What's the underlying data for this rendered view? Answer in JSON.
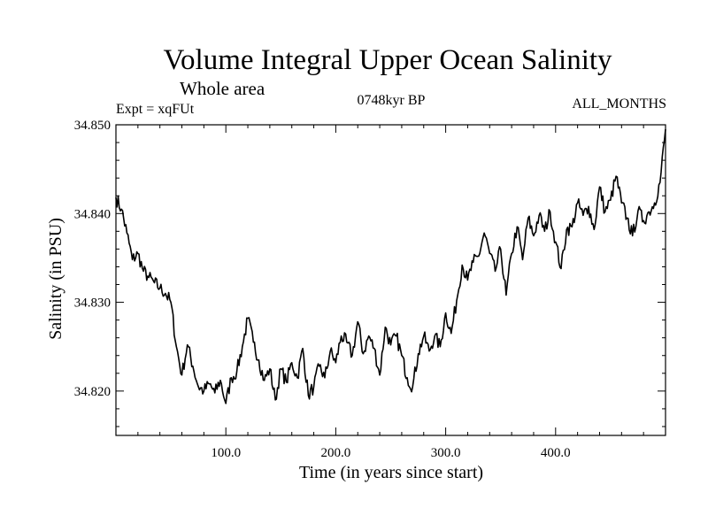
{
  "chart_data": {
    "type": "line",
    "title": "Volume Integral Upper Ocean Salinity",
    "subtitle": "Whole area",
    "annotations": {
      "experiment": "Expt = xqFUt",
      "period": "0748kyr BP",
      "months": "ALL_MONTHS"
    },
    "xlabel": "Time (in years since start)",
    "ylabel": "Salinity (in PSU)",
    "xlim": [
      0,
      500
    ],
    "ylim": [
      34.815,
      34.85
    ],
    "x_ticks": [
      100,
      200,
      300,
      400
    ],
    "x_tick_labels": [
      "100.0",
      "200.0",
      "300.0",
      "400.0"
    ],
    "y_ticks": [
      34.82,
      34.83,
      34.84,
      34.85
    ],
    "y_tick_labels": [
      "34.820",
      "34.830",
      "34.840",
      "34.850"
    ],
    "grid": false,
    "series": [
      {
        "name": "salinity",
        "x": [
          0,
          5,
          10,
          15,
          20,
          25,
          30,
          35,
          40,
          45,
          50,
          55,
          60,
          65,
          70,
          75,
          80,
          85,
          90,
          95,
          100,
          105,
          110,
          115,
          120,
          125,
          130,
          135,
          140,
          145,
          150,
          155,
          160,
          165,
          170,
          175,
          180,
          185,
          190,
          195,
          200,
          205,
          210,
          215,
          220,
          225,
          230,
          235,
          240,
          245,
          250,
          255,
          260,
          265,
          270,
          275,
          280,
          285,
          290,
          295,
          300,
          305,
          310,
          315,
          320,
          325,
          330,
          335,
          340,
          345,
          350,
          355,
          360,
          365,
          370,
          375,
          380,
          385,
          390,
          395,
          400,
          405,
          410,
          415,
          420,
          425,
          430,
          435,
          440,
          445,
          450,
          455,
          460,
          465,
          470,
          475,
          480,
          485,
          490,
          495,
          500
        ],
        "values": [
          34.8418,
          34.8405,
          34.8378,
          34.8348,
          34.8355,
          34.8335,
          34.8328,
          34.8322,
          34.8316,
          34.831,
          34.83,
          34.825,
          34.8218,
          34.8252,
          34.8228,
          34.8205,
          34.82,
          34.8208,
          34.8198,
          34.8212,
          34.8186,
          34.8215,
          34.8222,
          34.825,
          34.8282,
          34.8255,
          34.8235,
          34.8212,
          34.8225,
          34.819,
          34.8225,
          34.821,
          34.8232,
          34.8215,
          34.8248,
          34.8195,
          34.8205,
          34.8228,
          34.8215,
          34.8245,
          34.8232,
          34.8262,
          34.8255,
          34.824,
          34.8278,
          34.8242,
          34.8262,
          34.8248,
          34.8218,
          34.8272,
          34.8252,
          34.8262,
          34.824,
          34.8215,
          34.8205,
          34.8242,
          34.8262,
          34.8245,
          34.8262,
          34.825,
          34.8288,
          34.8265,
          34.8302,
          34.8342,
          34.8325,
          34.8345,
          34.8352,
          34.8378,
          34.8355,
          34.8335,
          34.836,
          34.8308,
          34.8355,
          34.8385,
          34.8348,
          34.8395,
          34.8375,
          34.8398,
          34.838,
          34.8402,
          34.8368,
          34.8338,
          34.8382,
          34.8385,
          34.8412,
          34.8398,
          34.8408,
          34.8382,
          34.843,
          34.8402,
          34.8415,
          34.8442,
          34.8412,
          34.8395,
          34.8375,
          34.8403,
          34.8392,
          34.8402,
          34.8412,
          34.8435,
          34.8495
        ]
      }
    ]
  }
}
